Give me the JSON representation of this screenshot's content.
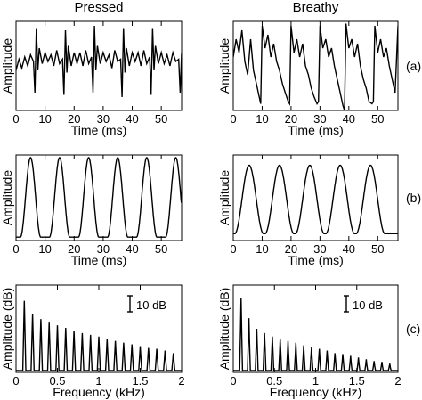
{
  "chart_data": [
    {
      "type": "line",
      "column_title": "Pressed",
      "row_label": "(a)",
      "xlabel": "Time (ms)",
      "ylabel": "Amplitude",
      "xlim": [
        0,
        57
      ],
      "xticks": [
        0,
        10,
        20,
        30,
        40,
        50
      ],
      "ylim": [
        -1,
        1
      ],
      "series": [
        {
          "period_ms": 10,
          "first_pulse_ms": 7,
          "x": [
            0,
            1,
            2,
            3,
            4,
            5,
            6,
            6.5,
            7,
            7.5,
            8,
            9,
            10,
            11,
            12,
            13,
            14,
            15,
            16,
            16.5,
            17,
            17.5,
            18,
            19,
            20,
            21,
            22,
            23,
            24,
            25,
            26,
            26.5,
            27,
            27.5,
            28,
            29,
            30,
            31,
            32,
            33,
            34,
            35,
            36,
            36.5,
            37,
            37.5,
            38,
            39,
            40,
            41,
            42,
            43,
            44,
            45,
            46,
            46.5,
            47,
            47.5,
            48,
            49,
            50,
            51,
            52,
            53,
            54,
            55,
            56,
            56.5,
            57
          ],
          "y": [
            -0.1,
            0.15,
            -0.05,
            0.2,
            0.0,
            0.25,
            0.1,
            -0.6,
            0.85,
            -0.1,
            0.4,
            0.05,
            0.3,
            0.1,
            0.25,
            0.0,
            0.35,
            0.05,
            0.15,
            -0.65,
            0.8,
            -0.15,
            0.45,
            0.0,
            0.3,
            0.05,
            0.3,
            0.0,
            0.35,
            0.05,
            0.2,
            -0.6,
            0.9,
            -0.1,
            0.45,
            0.05,
            0.3,
            0.1,
            0.25,
            -0.05,
            0.35,
            0.1,
            0.15,
            -0.7,
            0.85,
            -0.15,
            0.4,
            0.0,
            0.3,
            0.1,
            0.3,
            0.0,
            0.35,
            0.05,
            0.2,
            -0.65,
            0.85,
            -0.1,
            0.45,
            0.05,
            0.3,
            0.05,
            0.25,
            0.0,
            0.3,
            0.1,
            0.15,
            -0.6,
            0.3
          ]
        }
      ]
    },
    {
      "type": "line",
      "column_title": "Breathy",
      "row_label": "(a)",
      "xlabel": "Time (ms)",
      "ylabel": "Amplitude",
      "xlim": [
        0,
        57
      ],
      "xticks": [
        0,
        10,
        20,
        30,
        40,
        50
      ],
      "ylim": [
        -1,
        1
      ],
      "series": [
        {
          "x": [
            0,
            1,
            2,
            3,
            4,
            5,
            6,
            7,
            8,
            9,
            9.5,
            10,
            11,
            12,
            13,
            14,
            15,
            16,
            17,
            18,
            19,
            19.5,
            20,
            21,
            22,
            23,
            24,
            25,
            26,
            27,
            28,
            29,
            29.5,
            30,
            31,
            32,
            33,
            34,
            35,
            36,
            37,
            38,
            38.5,
            39,
            40,
            41,
            42,
            43,
            44,
            45,
            46,
            47,
            48,
            48.5,
            49,
            50,
            51,
            52,
            53,
            54,
            55,
            56,
            57
          ],
          "y": [
            0.2,
            0.6,
            0.3,
            0.8,
            0.1,
            -0.2,
            0.6,
            -0.1,
            -0.4,
            -0.7,
            -0.85,
            0.9,
            0.4,
            0.7,
            0.2,
            0.5,
            0.1,
            -0.1,
            -0.4,
            -0.6,
            -0.8,
            -0.85,
            0.9,
            0.3,
            0.6,
            0.2,
            0.5,
            0.0,
            -0.2,
            -0.5,
            -0.7,
            -0.85,
            -0.8,
            0.9,
            0.4,
            0.6,
            0.2,
            0.4,
            0.0,
            -0.3,
            -0.6,
            -0.9,
            -1.0,
            0.95,
            0.4,
            0.6,
            0.2,
            0.5,
            0.0,
            -0.3,
            -0.5,
            -0.8,
            -0.85,
            -0.8,
            0.9,
            0.3,
            0.6,
            0.2,
            0.4,
            0.0,
            -0.3,
            -0.6,
            0.9
          ]
        }
      ]
    },
    {
      "type": "line",
      "column_title": "",
      "row_label": "(b)",
      "xlabel": "Time (ms)",
      "ylabel": "Amplitude",
      "xlim": [
        0,
        57
      ],
      "xticks": [
        0,
        10,
        20,
        30,
        40,
        50
      ],
      "ylim": [
        0,
        1
      ],
      "series": [
        {
          "shape": "glottal_pulse_train",
          "period_ms": 10,
          "pulse_peak_ms": [
            5,
            15,
            25,
            35,
            45,
            55
          ],
          "open_quotient": 0.7,
          "closed_level": 0.04,
          "peak_level": 0.97
        }
      ]
    },
    {
      "type": "line",
      "column_title": "",
      "row_label": "(b)",
      "xlabel": "Time (ms)",
      "ylabel": "Amplitude",
      "xlim": [
        0,
        57
      ],
      "xticks": [
        0,
        10,
        20,
        30,
        40,
        50
      ],
      "ylim": [
        0,
        1
      ],
      "series": [
        {
          "shape": "glottal_pulse_train",
          "period_ms": 10.5,
          "pulse_peak_ms": [
            5.5,
            16,
            26.5,
            37,
            47.5
          ],
          "open_quotient": 0.95,
          "closed_level": 0.08,
          "peak_level": 0.88
        }
      ]
    },
    {
      "type": "line",
      "column_title": "",
      "row_label": "(c)",
      "xlabel": "Frequency (kHz)",
      "ylabel": "Amplitude (dB)",
      "xlim": [
        0,
        2
      ],
      "xticks": [
        0,
        0.5,
        1,
        1.5,
        2
      ],
      "scale_bar": "10 dB",
      "series": [
        {
          "f0_khz": 0.1,
          "harmonic_freqs_khz": [
            0.1,
            0.2,
            0.3,
            0.4,
            0.5,
            0.6,
            0.7,
            0.8,
            0.9,
            1.0,
            1.1,
            1.2,
            1.3,
            1.4,
            1.5,
            1.6,
            1.7,
            1.8,
            1.9
          ],
          "harmonic_levels": [
            0.82,
            0.67,
            0.61,
            0.57,
            0.54,
            0.51,
            0.48,
            0.45,
            0.43,
            0.41,
            0.38,
            0.36,
            0.34,
            0.32,
            0.3,
            0.28,
            0.27,
            0.25,
            0.22
          ]
        }
      ]
    },
    {
      "type": "line",
      "column_title": "",
      "row_label": "(c)",
      "xlabel": "Frequency (kHz)",
      "ylabel": "Amplitude (dB)",
      "xlim": [
        0,
        2
      ],
      "xticks": [
        0,
        0.5,
        1,
        1.5,
        2
      ],
      "scale_bar": "10 dB",
      "series": [
        {
          "f0_khz": 0.095,
          "harmonic_freqs_khz": [
            0.095,
            0.19,
            0.285,
            0.38,
            0.475,
            0.57,
            0.665,
            0.76,
            0.855,
            0.95,
            1.045,
            1.14,
            1.235,
            1.33,
            1.425,
            1.52,
            1.615,
            1.71,
            1.805,
            1.9
          ],
          "harmonic_levels": [
            0.85,
            0.62,
            0.5,
            0.45,
            0.41,
            0.38,
            0.36,
            0.34,
            0.31,
            0.29,
            0.27,
            0.25,
            0.22,
            0.21,
            0.19,
            0.17,
            0.15,
            0.13,
            0.12,
            0.1
          ]
        }
      ]
    }
  ]
}
